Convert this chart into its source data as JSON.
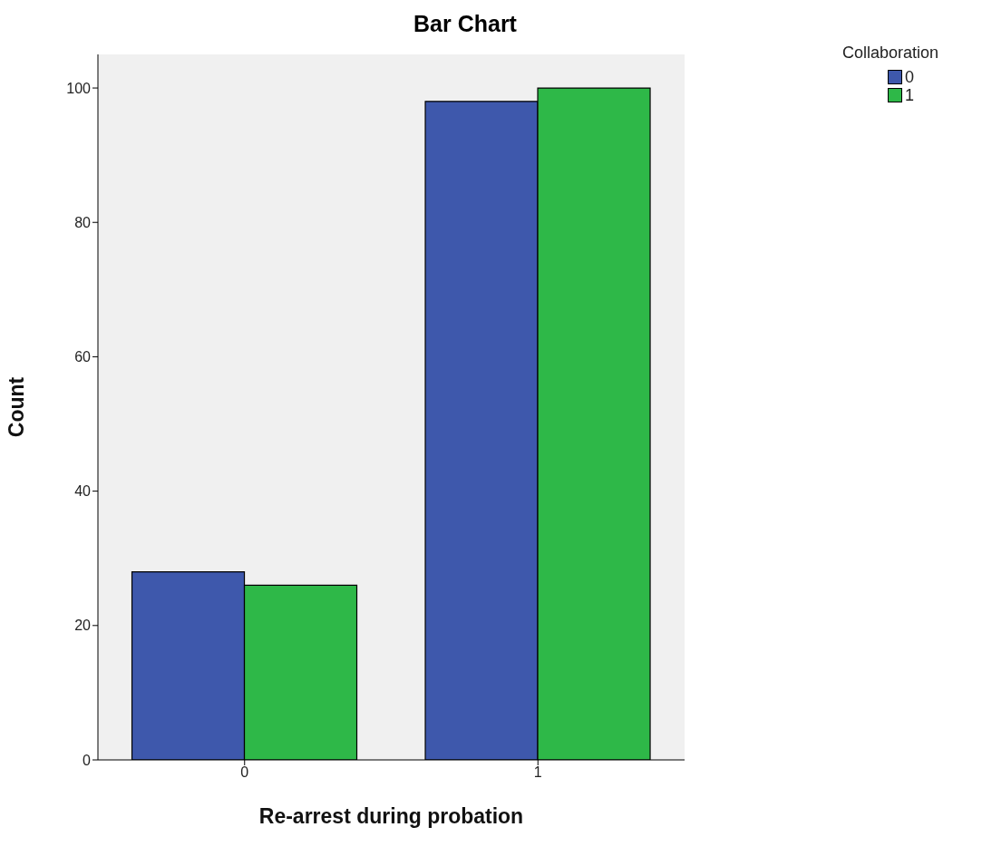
{
  "chart_data": {
    "type": "bar",
    "title": "Bar Chart",
    "xlabel": "Re-arrest during probation",
    "ylabel": "Count",
    "legend_title": "Collaboration",
    "categories": [
      "0",
      "1"
    ],
    "series": [
      {
        "name": "0",
        "color": "#3e58ac",
        "values": [
          28,
          98
        ]
      },
      {
        "name": "1",
        "color": "#2eb848",
        "values": [
          26,
          100
        ]
      }
    ],
    "ylim": [
      0,
      105
    ],
    "yticks": [
      0,
      20,
      40,
      60,
      80,
      100
    ],
    "grid": false,
    "legend": "top right"
  }
}
